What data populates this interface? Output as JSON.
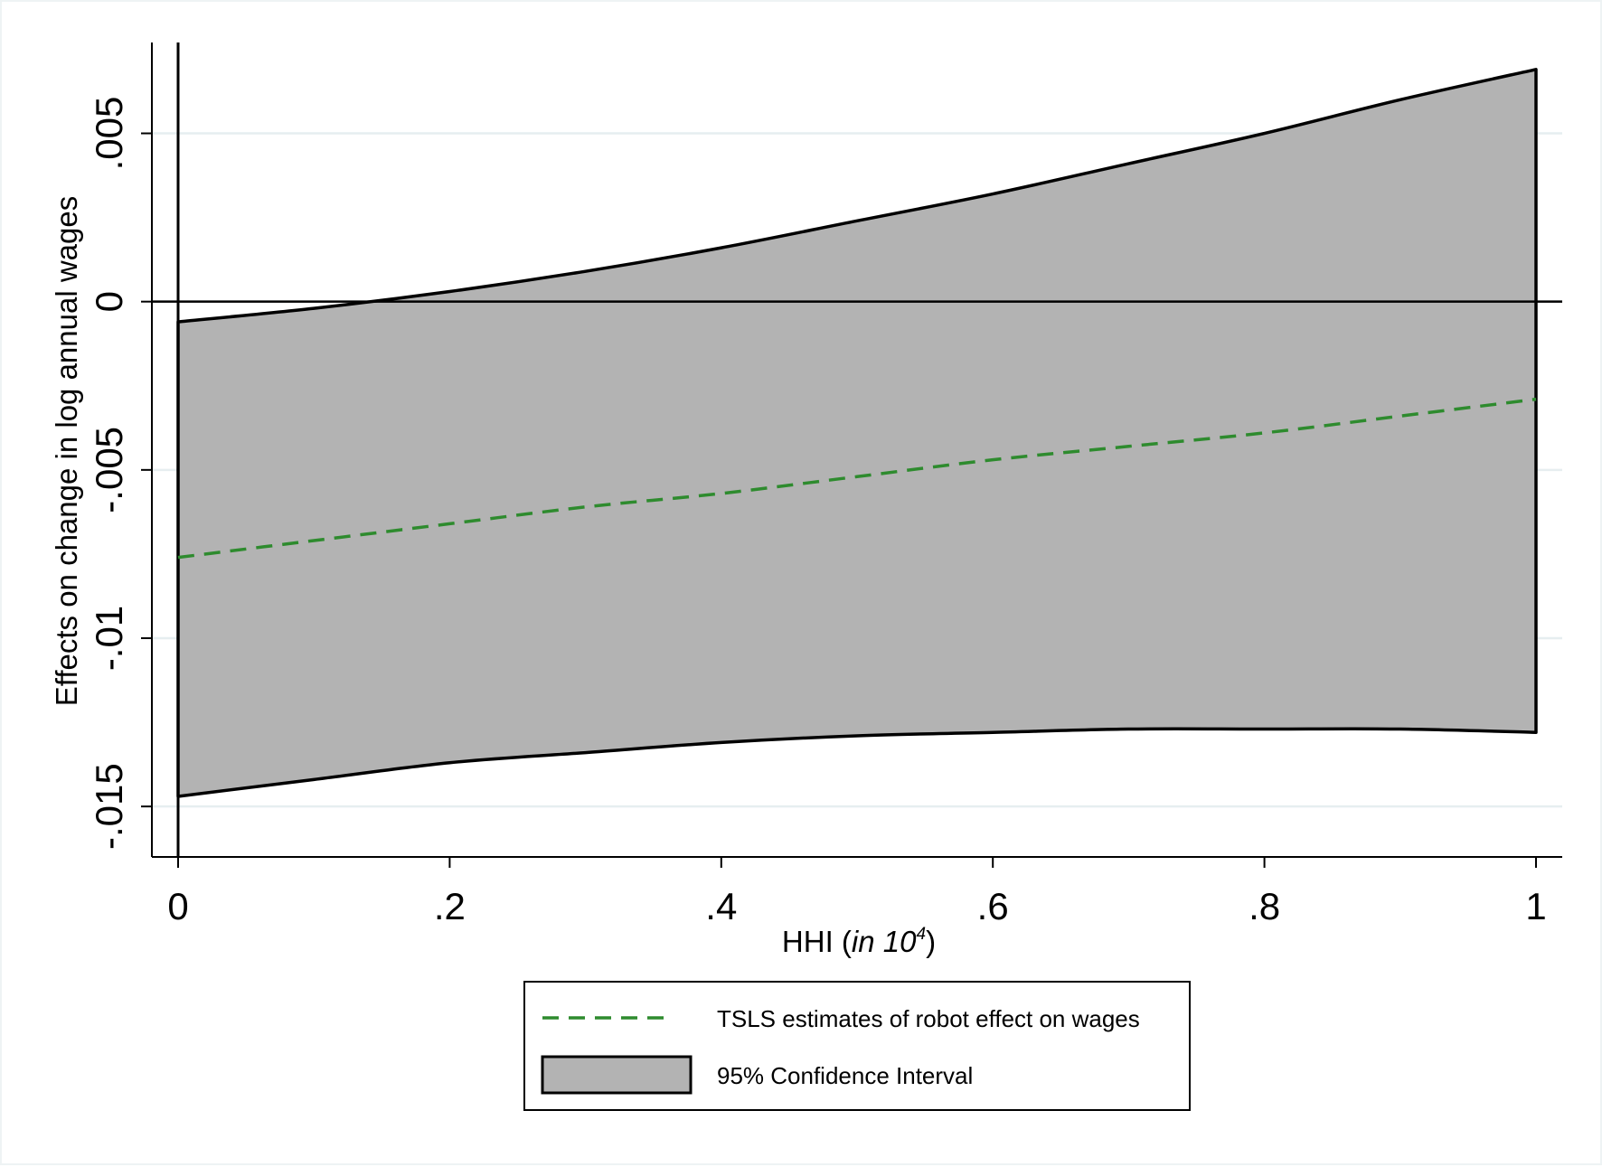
{
  "chart_data": {
    "type": "area",
    "title": "",
    "xlabel": {
      "prefix": "HHI (",
      "italic": "in 10",
      "superscript": "4",
      "suffix": ")"
    },
    "ylabel": "Effects on change in log annual wages",
    "xlim": [
      0,
      1
    ],
    "ylim": [
      -0.0165,
      0.0077
    ],
    "xticks": [
      {
        "value": 0,
        "label": "0"
      },
      {
        "value": 0.2,
        "label": ".2"
      },
      {
        "value": 0.4,
        "label": ".4"
      },
      {
        "value": 0.6,
        "label": ".6"
      },
      {
        "value": 0.8,
        "label": ".8"
      },
      {
        "value": 1,
        "label": "1"
      }
    ],
    "yticks": [
      {
        "value": -0.015,
        "label": "-.015"
      },
      {
        "value": -0.01,
        "label": "-.01"
      },
      {
        "value": -0.005,
        "label": "-.005"
      },
      {
        "value": 0,
        "label": "0"
      },
      {
        "value": 0.005,
        "label": ".005"
      }
    ],
    "grid": true,
    "reference_lines": {
      "x": 0,
      "y": 0
    },
    "x": [
      0,
      0.1,
      0.2,
      0.3,
      0.4,
      0.5,
      0.6,
      0.7,
      0.8,
      0.9,
      1.0
    ],
    "series": [
      {
        "name": "TSLS estimates of robot effect on wages",
        "kind": "line",
        "style": "dashed",
        "color": "#2e8b2e",
        "values": [
          -0.0076,
          -0.0071,
          -0.0066,
          -0.0061,
          -0.0057,
          -0.0052,
          -0.0047,
          -0.0043,
          -0.0039,
          -0.0034,
          -0.0029
        ]
      },
      {
        "name": "95% Confidence Interval",
        "kind": "band",
        "color": "#b3b3b3",
        "upper": [
          -0.0006,
          -0.0002,
          0.0003,
          0.0009,
          0.0016,
          0.0024,
          0.0032,
          0.0041,
          0.005,
          0.006,
          0.0069
        ],
        "lower": [
          -0.0147,
          -0.0142,
          -0.0137,
          -0.0134,
          -0.0131,
          -0.0129,
          -0.0128,
          -0.0127,
          -0.0127,
          -0.0127,
          -0.0128
        ]
      }
    ],
    "legend": {
      "position": "bottom-center",
      "entries": [
        "TSLS estimates of robot effect on wages",
        "95% Confidence Interval"
      ]
    }
  }
}
